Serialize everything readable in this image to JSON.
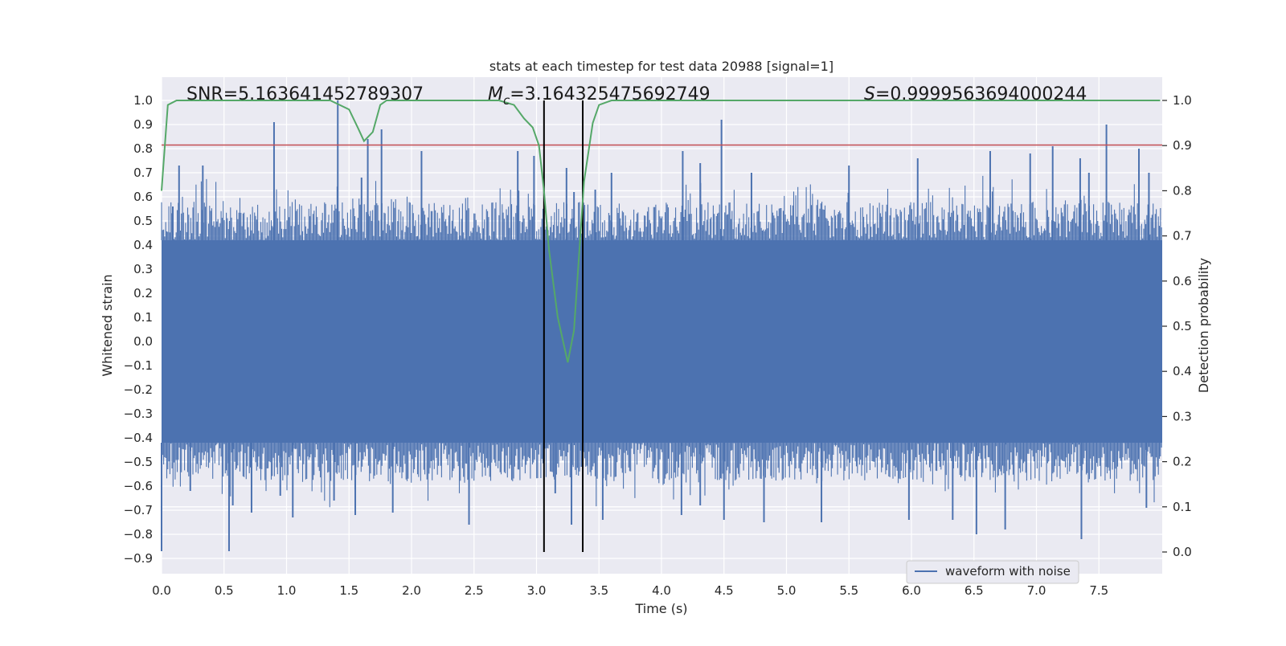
{
  "chart_data": {
    "type": "line",
    "title": "stats at each timestep for test data 20988 [signal=1]",
    "xlabel": "Time (s)",
    "ylabel_left": "Whitened strain",
    "ylabel_right": "Detection probability",
    "xlim": [
      0,
      8
    ],
    "ylim_left": [
      -1.0,
      1.1
    ],
    "ylim_right": [
      -0.05,
      1.05
    ],
    "x_ticks": [
      "0.0",
      "0.5",
      "1.0",
      "1.5",
      "2.0",
      "2.5",
      "3.0",
      "3.5",
      "4.0",
      "4.5",
      "5.0",
      "5.5",
      "6.0",
      "6.5",
      "7.0",
      "7.5"
    ],
    "y_ticks_left": [
      "-0.9",
      "-0.8",
      "-0.7",
      "-0.6",
      "-0.5",
      "-0.4",
      "-0.3",
      "-0.2",
      "-0.1",
      "0.0",
      "0.1",
      "0.2",
      "0.3",
      "0.4",
      "0.5",
      "0.6",
      "0.7",
      "0.8",
      "0.9",
      "1.0"
    ],
    "y_ticks_right": [
      "0.0",
      "0.1",
      "0.2",
      "0.3",
      "0.4",
      "0.5",
      "0.6",
      "0.7",
      "0.8",
      "0.9",
      "1.0"
    ],
    "annotations": {
      "snr": "SNR=5.163641452789307",
      "mc_symbol": "M",
      "mc_sub": "c",
      "mc_value": "=3.164325475692749",
      "s_symbol": "S",
      "s_value": "=0.9999563694000244"
    },
    "threshold_left": 0.815,
    "signal_window": {
      "start": 3.06,
      "end": 3.37
    },
    "series": [
      {
        "name": "waveform with noise",
        "axis": "left",
        "color": "#4c72b0",
        "bulk_band": [
          -0.42,
          0.42
        ],
        "spikes_up": [
          [
            0.09,
            0.56
          ],
          [
            0.14,
            0.73
          ],
          [
            0.33,
            0.73
          ],
          [
            0.9,
            0.91
          ],
          [
            1.41,
            1.0
          ],
          [
            1.6,
            0.68
          ],
          [
            1.65,
            0.84
          ],
          [
            1.76,
            0.88
          ],
          [
            2.08,
            0.79
          ],
          [
            2.85,
            0.79
          ],
          [
            2.98,
            0.77
          ],
          [
            3.24,
            0.72
          ],
          [
            3.3,
            0.62
          ],
          [
            3.47,
            0.63
          ],
          [
            3.6,
            0.7
          ],
          [
            4.17,
            0.79
          ],
          [
            4.31,
            0.74
          ],
          [
            4.48,
            0.92
          ],
          [
            4.72,
            0.7
          ],
          [
            5.5,
            0.73
          ],
          [
            6.05,
            0.76
          ],
          [
            6.63,
            0.79
          ],
          [
            6.95,
            0.78
          ],
          [
            7.13,
            0.81
          ],
          [
            7.35,
            0.76
          ],
          [
            7.42,
            0.7
          ],
          [
            7.56,
            0.9
          ],
          [
            7.82,
            0.8
          ],
          [
            7.9,
            0.7
          ]
        ],
        "spikes_down": [
          [
            0.0,
            -0.87
          ],
          [
            0.23,
            -0.62
          ],
          [
            0.54,
            -0.87
          ],
          [
            0.57,
            -0.68
          ],
          [
            0.72,
            -0.71
          ],
          [
            0.95,
            -0.64
          ],
          [
            1.05,
            -0.73
          ],
          [
            1.38,
            -0.66
          ],
          [
            1.55,
            -0.72
          ],
          [
            1.85,
            -0.71
          ],
          [
            2.46,
            -0.76
          ],
          [
            3.15,
            -0.63
          ],
          [
            3.28,
            -0.76
          ],
          [
            3.36,
            -0.52
          ],
          [
            3.53,
            -0.74
          ],
          [
            4.16,
            -0.72
          ],
          [
            4.31,
            -0.68
          ],
          [
            4.5,
            -0.74
          ],
          [
            4.82,
            -0.75
          ],
          [
            5.28,
            -0.75
          ],
          [
            5.98,
            -0.74
          ],
          [
            6.33,
            -0.74
          ],
          [
            6.52,
            -0.8
          ],
          [
            6.75,
            -0.78
          ],
          [
            7.36,
            -0.82
          ],
          [
            7.88,
            -0.69
          ]
        ]
      },
      {
        "name": "detection probability",
        "axis": "right",
        "color": "#55a868",
        "x": [
          0.0,
          0.05,
          0.12,
          0.5,
          1.0,
          1.35,
          1.5,
          1.57,
          1.62,
          1.69,
          1.75,
          1.8,
          2.2,
          2.7,
          2.82,
          2.9,
          2.97,
          3.02,
          3.06,
          3.1,
          3.17,
          3.25,
          3.3,
          3.38,
          3.45,
          3.5,
          3.6,
          4.0,
          8.0
        ],
        "y": [
          0.8,
          0.99,
          1.0,
          1.0,
          1.0,
          1.0,
          0.98,
          0.94,
          0.91,
          0.93,
          0.99,
          1.0,
          1.0,
          1.0,
          0.99,
          0.96,
          0.94,
          0.9,
          0.8,
          0.67,
          0.52,
          0.42,
          0.49,
          0.82,
          0.95,
          0.99,
          1.0,
          1.0,
          1.0
        ]
      }
    ],
    "legend": {
      "label": "waveform with noise",
      "placement": "lower-right"
    }
  }
}
